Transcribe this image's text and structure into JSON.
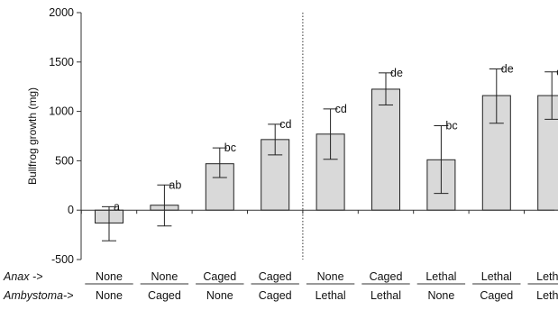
{
  "chart_data": {
    "type": "bar",
    "ylabel": "Bullfrog growth (mg)",
    "ylim": [
      -500,
      2000
    ],
    "yticks": [
      -500,
      0,
      500,
      1000,
      1500,
      2000
    ],
    "ytick_labels": [
      "-500",
      "0",
      "500",
      "1000",
      "1500",
      "2000"
    ],
    "bar_color": "#d9d9d9",
    "divider_after_index": 3,
    "bars": [
      {
        "value": -130,
        "err_low": -310,
        "err_high": 35,
        "label": "a"
      },
      {
        "value": 50,
        "err_low": -160,
        "err_high": 255,
        "label": "ab"
      },
      {
        "value": 470,
        "err_low": 330,
        "err_high": 630,
        "label": "bc"
      },
      {
        "value": 715,
        "err_low": 560,
        "err_high": 870,
        "label": "cd"
      },
      {
        "value": 770,
        "err_low": 515,
        "err_high": 1025,
        "label": "cd"
      },
      {
        "value": 1225,
        "err_low": 1065,
        "err_high": 1390,
        "label": "de"
      },
      {
        "value": 510,
        "err_low": 170,
        "err_high": 855,
        "label": "bc"
      },
      {
        "value": 1160,
        "err_low": 880,
        "err_high": 1430,
        "label": "de"
      },
      {
        "value": 1160,
        "err_low": 920,
        "err_high": 1400,
        "label": "de"
      }
    ],
    "rows": [
      {
        "name": "Anax ->",
        "values": [
          "None",
          "None",
          "Caged",
          "Caged",
          "None",
          "Caged",
          "Lethal",
          "Lethal",
          "Lethal"
        ]
      },
      {
        "name": "Ambystoma->",
        "values": [
          "None",
          "Caged",
          "None",
          "Caged",
          "Lethal",
          "Lethal",
          "None",
          "Caged",
          "Lethal"
        ]
      }
    ]
  }
}
